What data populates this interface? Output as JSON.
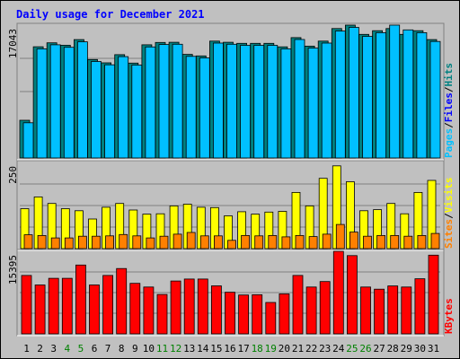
{
  "chart_data": {
    "type": "bar",
    "title": "Daily usage for December 2021",
    "days": [
      "1",
      "2",
      "3",
      "4",
      "5",
      "6",
      "7",
      "8",
      "9",
      "10",
      "11",
      "12",
      "13",
      "14",
      "15",
      "16",
      "17",
      "18",
      "19",
      "20",
      "21",
      "22",
      "23",
      "24",
      "25",
      "26",
      "27",
      "28",
      "29",
      "30",
      "31"
    ],
    "weekend_days": [
      "4",
      "5",
      "11",
      "12",
      "18",
      "19",
      "25",
      "26"
    ],
    "panels": [
      {
        "id": "hits",
        "max_label": "17043",
        "ylim": [
          0,
          17043
        ],
        "legend": [
          "Pages",
          "Files",
          "Hits"
        ],
        "series": [
          {
            "name": "Hits",
            "color": "#008080",
            "values": [
              4838,
              14270,
              14776,
              14458,
              15191,
              12636,
              12204,
              13251,
              12172,
              14519,
              14815,
              14847,
              13292,
              13094,
              14994,
              14847,
              14708,
              14708,
              14708,
              14261,
              15444,
              14343,
              14994,
              16609,
              17043,
              15859,
              16329,
              16609,
              15859,
              16329,
              15191
            ]
          },
          {
            "name": "Files",
            "color": "#00c0ff",
            "values": [
              4510,
              14000,
              14520,
              14200,
              14900,
              12380,
              11950,
              13000,
              11920,
              14250,
              14560,
              14590,
              13040,
              12840,
              14740,
              14590,
              14450,
              14450,
              14450,
              14000,
              15200,
              14100,
              14740,
              16280,
              16750,
              15600,
              16080,
              17043,
              16430,
              16080,
              14950
            ]
          },
          {
            "name": "Pages",
            "color": "#00c0ff",
            "values": []
          }
        ]
      },
      {
        "id": "visits",
        "max_label": "250",
        "ylim": [
          0,
          250
        ],
        "legend": [
          "Sites",
          "Visits"
        ],
        "series": [
          {
            "name": "Visits",
            "color": "#ffff00",
            "values": [
              116,
              150,
              131,
              116,
              110,
              86,
              120,
              131,
              112,
              100,
              101,
              124,
              129,
              120,
              119,
              95,
              107,
              100,
              106,
              108,
              163,
              124,
              204,
              240,
              194,
              110,
              113,
              131,
              101,
              163,
              198
            ]
          },
          {
            "name": "Sites",
            "color": "#ff8000",
            "values": [
              40,
              38,
              31,
              31,
              36,
              36,
              37,
              41,
              37,
              31,
              36,
              42,
              47,
              37,
              37,
              24,
              38,
              37,
              38,
              34,
              38,
              35,
              42,
              70,
              48,
              36,
              38,
              38,
              36,
              38,
              44
            ]
          }
        ]
      },
      {
        "id": "kbytes",
        "max_label": "15395",
        "ylim": [
          0,
          15395
        ],
        "legend": [
          "KBytes"
        ],
        "series": [
          {
            "name": "KBytes",
            "color": "#ff0000",
            "values": [
              10900,
              9120,
              10350,
              10350,
              12840,
              9120,
              10900,
              12190,
              9420,
              8740,
              7350,
              9850,
              10230,
              10230,
              8950,
              7760,
              7250,
              7290,
              5860,
              7460,
              10900,
              8740,
              9750,
              15395,
              14600,
              8740,
              8330,
              8940,
              8740,
              10270,
              14680
            ]
          }
        ]
      }
    ]
  }
}
